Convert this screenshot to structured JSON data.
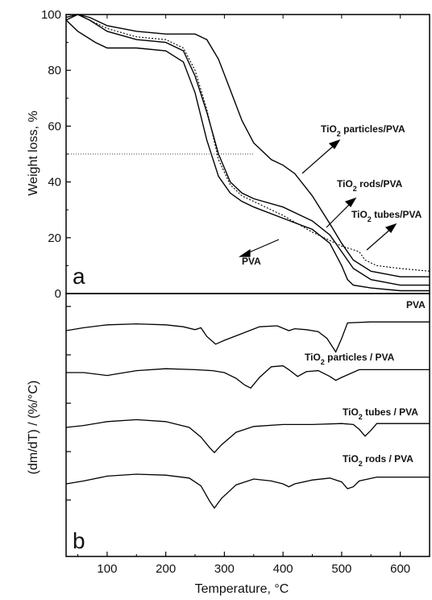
{
  "chart_data": [
    {
      "panel": "a",
      "type": "line",
      "xlabel": "",
      "ylabel": "Weight loss, %",
      "xlim": [
        30,
        650
      ],
      "ylim": [
        0,
        100
      ],
      "yticks": [
        0,
        20,
        40,
        60,
        80,
        100
      ],
      "reference_line": {
        "y": 50,
        "style": "dotted"
      },
      "series": [
        {
          "name": "PVA",
          "style": "solid",
          "x": [
            30,
            50,
            80,
            100,
            150,
            200,
            230,
            250,
            270,
            290,
            310,
            330,
            350,
            400,
            450,
            480,
            500,
            510,
            520,
            550,
            600,
            650
          ],
          "y": [
            98,
            94,
            90,
            88,
            88,
            87,
            83,
            72,
            55,
            42,
            36,
            33,
            31,
            27,
            23,
            18,
            10,
            5,
            3,
            2,
            1,
            1
          ]
        },
        {
          "name": "TiO2 particles/PVA",
          "style": "solid",
          "x": [
            30,
            50,
            70,
            100,
            150,
            200,
            250,
            270,
            290,
            310,
            330,
            350,
            380,
            400,
            420,
            450,
            480,
            500,
            520,
            550,
            600,
            650
          ],
          "y": [
            99,
            100,
            99,
            96,
            94,
            93,
            93,
            91,
            84,
            73,
            62,
            54,
            48,
            46,
            43,
            35,
            25,
            18,
            12,
            8,
            6,
            6
          ]
        },
        {
          "name": "TiO2 rods/PVA",
          "style": "solid",
          "x": [
            30,
            50,
            70,
            100,
            150,
            200,
            230,
            250,
            270,
            290,
            310,
            330,
            350,
            400,
            450,
            480,
            500,
            520,
            550,
            600,
            650
          ],
          "y": [
            98,
            100,
            98,
            94,
            91,
            90,
            87,
            78,
            65,
            50,
            40,
            36,
            34,
            31,
            26,
            21,
            15,
            9,
            5,
            3,
            3
          ]
        },
        {
          "name": "TiO2 tubes/PVA",
          "style": "dashed",
          "x": [
            30,
            50,
            70,
            100,
            150,
            200,
            230,
            250,
            270,
            290,
            310,
            330,
            350,
            400,
            450,
            500,
            530,
            540,
            560,
            600,
            650
          ],
          "y": [
            99,
            100,
            98,
            95,
            92,
            91,
            88,
            80,
            66,
            48,
            39,
            35,
            33,
            28,
            22,
            17,
            15,
            12,
            10,
            9,
            8
          ]
        }
      ],
      "annotations": [
        {
          "text": "TiO",
          "sub": "2",
          "rest": " particles/PVA"
        },
        {
          "text": "TiO",
          "sub": "2",
          "rest": " rods/PVA"
        },
        {
          "text": "TiO",
          "sub": "2",
          "rest": " tubes/PVA"
        },
        {
          "text": "PVA",
          "sub": "",
          "rest": ""
        }
      ]
    },
    {
      "panel": "b",
      "type": "line",
      "xlabel": "Temperature, °C",
      "ylabel": "(dm/dT) / (%/°C)",
      "xlim": [
        30,
        650
      ],
      "xticks": [
        100,
        200,
        300,
        400,
        500,
        600
      ],
      "note": "vertically offset derivative curves (DTG), y values in relative units",
      "series": [
        {
          "name": "PVA",
          "offset": 0,
          "x": [
            30,
            60,
            100,
            150,
            200,
            230,
            250,
            260,
            270,
            285,
            300,
            330,
            360,
            390,
            410,
            420,
            440,
            460,
            475,
            490,
            500,
            510,
            550,
            600,
            650
          ],
          "y": [
            0,
            0.3,
            0.6,
            0.7,
            0.6,
            0.4,
            0.1,
            0.3,
            -0.6,
            -1.4,
            -1.0,
            -0.3,
            0.4,
            0.5,
            0.0,
            0.2,
            0.1,
            -0.1,
            -0.8,
            -2.2,
            -0.8,
            0.8,
            0.9,
            0.9,
            0.9
          ]
        },
        {
          "name": "TiO2 particles / PVA",
          "offset": 0,
          "x": [
            30,
            60,
            100,
            130,
            150,
            200,
            250,
            280,
            300,
            320,
            335,
            345,
            360,
            380,
            400,
            410,
            425,
            440,
            460,
            480,
            490,
            500,
            530,
            560,
            600,
            650
          ],
          "y": [
            0,
            0,
            -0.3,
            0,
            0.2,
            0.4,
            0.3,
            0.2,
            0.0,
            -0.6,
            -1.3,
            -1.6,
            -0.5,
            0.6,
            0.7,
            0.3,
            -0.4,
            0.1,
            0.2,
            -0.4,
            -0.8,
            -0.5,
            0.3,
            0.3,
            0.3,
            0.3
          ]
        },
        {
          "name": "TiO2 tubes / PVA",
          "offset": 0,
          "x": [
            30,
            60,
            100,
            150,
            200,
            240,
            260,
            275,
            283,
            295,
            320,
            350,
            400,
            450,
            500,
            520,
            530,
            540,
            550,
            560,
            600,
            650
          ],
          "y": [
            0,
            0.2,
            0.6,
            0.8,
            0.6,
            0.0,
            -1.0,
            -2.1,
            -2.6,
            -1.8,
            -0.5,
            0.1,
            0.3,
            0.3,
            0.4,
            0.3,
            -0.2,
            -0.9,
            -0.3,
            0.4,
            0.4,
            0.4
          ]
        },
        {
          "name": "TiO2 rods / PVA",
          "offset": 0,
          "x": [
            30,
            60,
            100,
            150,
            200,
            240,
            260,
            275,
            283,
            295,
            320,
            350,
            380,
            400,
            410,
            420,
            450,
            480,
            500,
            510,
            520,
            530,
            560,
            600,
            650
          ],
          "y": [
            0,
            0.3,
            0.8,
            1.0,
            0.9,
            0.6,
            -0.2,
            -1.8,
            -2.5,
            -1.5,
            -0.1,
            0.5,
            0.3,
            0.0,
            -0.3,
            0.0,
            0.4,
            0.6,
            0.2,
            -0.5,
            -0.3,
            0.3,
            0.7,
            0.7,
            0.7
          ]
        }
      ],
      "annotations": [
        {
          "text": "PVA",
          "sub": "",
          "rest": ""
        },
        {
          "text": "TiO",
          "sub": "2",
          "rest": " particles / PVA"
        },
        {
          "text": "TiO",
          "sub": "2",
          "rest": " tubes / PVA"
        },
        {
          "text": "TiO",
          "sub": "2",
          "rest": " rods / PVA"
        }
      ]
    }
  ],
  "panel_letters": [
    "a",
    "b"
  ],
  "tick_labels_x": [
    "100",
    "200",
    "300",
    "400",
    "500",
    "600"
  ],
  "tick_labels_y": [
    "0",
    "20",
    "40",
    "60",
    "80",
    "100"
  ]
}
